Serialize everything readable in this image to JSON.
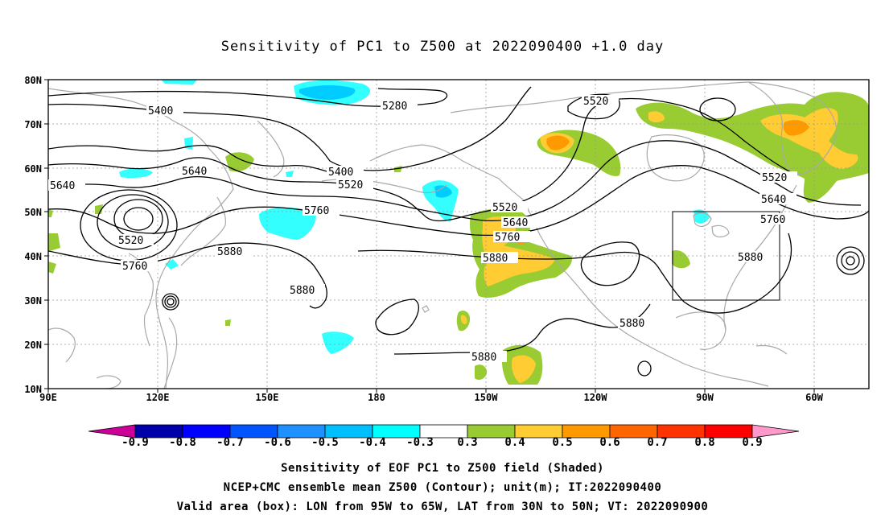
{
  "title": "Sensitivity of PC1 to Z500 at 2022090400 +1.0 day",
  "map": {
    "lat_labels": [
      "80N",
      "70N",
      "60N",
      "50N",
      "40N",
      "30N",
      "20N",
      "10N"
    ],
    "lon_labels": [
      "90E",
      "120E",
      "150E",
      "180",
      "150W",
      "120W",
      "90W",
      "60W"
    ],
    "contour_labels": [
      "5400",
      "5280",
      "5520",
      "5640",
      "5400",
      "5520",
      "5640",
      "5760",
      "5520",
      "5880",
      "5880",
      "5520",
      "5640",
      "5760",
      "5880",
      "5520",
      "5640",
      "5760",
      "5880",
      "5880",
      "5880",
      "5760"
    ],
    "validation_box": {
      "lon_from": "95W",
      "lon_to": "65W",
      "lat_from": "30N",
      "lat_to": "50N"
    },
    "shading_colors": {
      "green": "#99cc33",
      "yellow": "#ffcc33",
      "orange": "#ff9900",
      "cyan": "#33ffff",
      "skyblue": "#00ccff"
    }
  },
  "colorbar": {
    "ticks": [
      "-0.9",
      "-0.8",
      "-0.7",
      "-0.6",
      "-0.5",
      "-0.4",
      "-0.3",
      "0.3",
      "0.4",
      "0.5",
      "0.6",
      "0.7",
      "0.8",
      "0.9"
    ],
    "colors": [
      "#cc0099",
      "#0000aa",
      "#0000ff",
      "#0055ff",
      "#1e90ff",
      "#00bfff",
      "#00ffff",
      "#ffffff",
      "#99cc33",
      "#ffcc33",
      "#ff9900",
      "#ff6600",
      "#ff3300",
      "#ff0000",
      "#ff99cc"
    ]
  },
  "captions": [
    "Sensitivity of EOF PC1 to Z500 field (Shaded)",
    "NCEP+CMC ensemble mean Z500 (Contour); unit(m); IT:2022090400",
    "Valid area (box): LON from 95W to 65W, LAT from 30N to 50N; VT: 2022090900"
  ]
}
